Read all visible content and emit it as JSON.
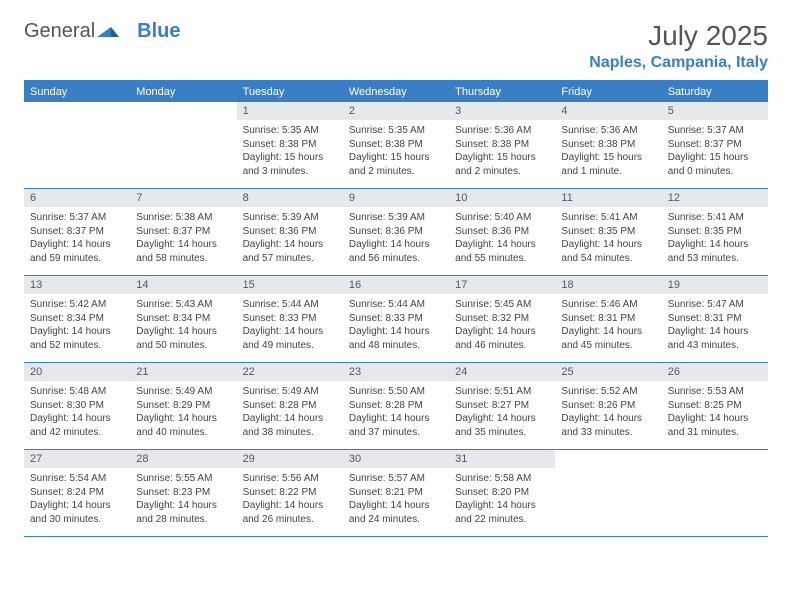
{
  "logo": {
    "text_gray": "General",
    "text_blue": "Blue"
  },
  "title": "July 2025",
  "location": "Naples, Campania, Italy",
  "colors": {
    "brand_blue": "#3a7fc4",
    "daynum_bg": "#e6e9ec",
    "text": "#444444",
    "border": "#3a7fc4"
  },
  "weekdays": [
    "Sunday",
    "Monday",
    "Tuesday",
    "Wednesday",
    "Thursday",
    "Friday",
    "Saturday"
  ],
  "weeks": [
    [
      {
        "empty": true
      },
      {
        "empty": true
      },
      {
        "num": "1",
        "sunrise": "Sunrise: 5:35 AM",
        "sunset": "Sunset: 8:38 PM",
        "day1": "Daylight: 15 hours",
        "day2": "and 3 minutes."
      },
      {
        "num": "2",
        "sunrise": "Sunrise: 5:35 AM",
        "sunset": "Sunset: 8:38 PM",
        "day1": "Daylight: 15 hours",
        "day2": "and 2 minutes."
      },
      {
        "num": "3",
        "sunrise": "Sunrise: 5:36 AM",
        "sunset": "Sunset: 8:38 PM",
        "day1": "Daylight: 15 hours",
        "day2": "and 2 minutes."
      },
      {
        "num": "4",
        "sunrise": "Sunrise: 5:36 AM",
        "sunset": "Sunset: 8:38 PM",
        "day1": "Daylight: 15 hours",
        "day2": "and 1 minute."
      },
      {
        "num": "5",
        "sunrise": "Sunrise: 5:37 AM",
        "sunset": "Sunset: 8:37 PM",
        "day1": "Daylight: 15 hours",
        "day2": "and 0 minutes."
      }
    ],
    [
      {
        "num": "6",
        "sunrise": "Sunrise: 5:37 AM",
        "sunset": "Sunset: 8:37 PM",
        "day1": "Daylight: 14 hours",
        "day2": "and 59 minutes."
      },
      {
        "num": "7",
        "sunrise": "Sunrise: 5:38 AM",
        "sunset": "Sunset: 8:37 PM",
        "day1": "Daylight: 14 hours",
        "day2": "and 58 minutes."
      },
      {
        "num": "8",
        "sunrise": "Sunrise: 5:39 AM",
        "sunset": "Sunset: 8:36 PM",
        "day1": "Daylight: 14 hours",
        "day2": "and 57 minutes."
      },
      {
        "num": "9",
        "sunrise": "Sunrise: 5:39 AM",
        "sunset": "Sunset: 8:36 PM",
        "day1": "Daylight: 14 hours",
        "day2": "and 56 minutes."
      },
      {
        "num": "10",
        "sunrise": "Sunrise: 5:40 AM",
        "sunset": "Sunset: 8:36 PM",
        "day1": "Daylight: 14 hours",
        "day2": "and 55 minutes."
      },
      {
        "num": "11",
        "sunrise": "Sunrise: 5:41 AM",
        "sunset": "Sunset: 8:35 PM",
        "day1": "Daylight: 14 hours",
        "day2": "and 54 minutes."
      },
      {
        "num": "12",
        "sunrise": "Sunrise: 5:41 AM",
        "sunset": "Sunset: 8:35 PM",
        "day1": "Daylight: 14 hours",
        "day2": "and 53 minutes."
      }
    ],
    [
      {
        "num": "13",
        "sunrise": "Sunrise: 5:42 AM",
        "sunset": "Sunset: 8:34 PM",
        "day1": "Daylight: 14 hours",
        "day2": "and 52 minutes."
      },
      {
        "num": "14",
        "sunrise": "Sunrise: 5:43 AM",
        "sunset": "Sunset: 8:34 PM",
        "day1": "Daylight: 14 hours",
        "day2": "and 50 minutes."
      },
      {
        "num": "15",
        "sunrise": "Sunrise: 5:44 AM",
        "sunset": "Sunset: 8:33 PM",
        "day1": "Daylight: 14 hours",
        "day2": "and 49 minutes."
      },
      {
        "num": "16",
        "sunrise": "Sunrise: 5:44 AM",
        "sunset": "Sunset: 8:33 PM",
        "day1": "Daylight: 14 hours",
        "day2": "and 48 minutes."
      },
      {
        "num": "17",
        "sunrise": "Sunrise: 5:45 AM",
        "sunset": "Sunset: 8:32 PM",
        "day1": "Daylight: 14 hours",
        "day2": "and 46 minutes."
      },
      {
        "num": "18",
        "sunrise": "Sunrise: 5:46 AM",
        "sunset": "Sunset: 8:31 PM",
        "day1": "Daylight: 14 hours",
        "day2": "and 45 minutes."
      },
      {
        "num": "19",
        "sunrise": "Sunrise: 5:47 AM",
        "sunset": "Sunset: 8:31 PM",
        "day1": "Daylight: 14 hours",
        "day2": "and 43 minutes."
      }
    ],
    [
      {
        "num": "20",
        "sunrise": "Sunrise: 5:48 AM",
        "sunset": "Sunset: 8:30 PM",
        "day1": "Daylight: 14 hours",
        "day2": "and 42 minutes."
      },
      {
        "num": "21",
        "sunrise": "Sunrise: 5:49 AM",
        "sunset": "Sunset: 8:29 PM",
        "day1": "Daylight: 14 hours",
        "day2": "and 40 minutes."
      },
      {
        "num": "22",
        "sunrise": "Sunrise: 5:49 AM",
        "sunset": "Sunset: 8:28 PM",
        "day1": "Daylight: 14 hours",
        "day2": "and 38 minutes."
      },
      {
        "num": "23",
        "sunrise": "Sunrise: 5:50 AM",
        "sunset": "Sunset: 8:28 PM",
        "day1": "Daylight: 14 hours",
        "day2": "and 37 minutes."
      },
      {
        "num": "24",
        "sunrise": "Sunrise: 5:51 AM",
        "sunset": "Sunset: 8:27 PM",
        "day1": "Daylight: 14 hours",
        "day2": "and 35 minutes."
      },
      {
        "num": "25",
        "sunrise": "Sunrise: 5:52 AM",
        "sunset": "Sunset: 8:26 PM",
        "day1": "Daylight: 14 hours",
        "day2": "and 33 minutes."
      },
      {
        "num": "26",
        "sunrise": "Sunrise: 5:53 AM",
        "sunset": "Sunset: 8:25 PM",
        "day1": "Daylight: 14 hours",
        "day2": "and 31 minutes."
      }
    ],
    [
      {
        "num": "27",
        "sunrise": "Sunrise: 5:54 AM",
        "sunset": "Sunset: 8:24 PM",
        "day1": "Daylight: 14 hours",
        "day2": "and 30 minutes."
      },
      {
        "num": "28",
        "sunrise": "Sunrise: 5:55 AM",
        "sunset": "Sunset: 8:23 PM",
        "day1": "Daylight: 14 hours",
        "day2": "and 28 minutes."
      },
      {
        "num": "29",
        "sunrise": "Sunrise: 5:56 AM",
        "sunset": "Sunset: 8:22 PM",
        "day1": "Daylight: 14 hours",
        "day2": "and 26 minutes."
      },
      {
        "num": "30",
        "sunrise": "Sunrise: 5:57 AM",
        "sunset": "Sunset: 8:21 PM",
        "day1": "Daylight: 14 hours",
        "day2": "and 24 minutes."
      },
      {
        "num": "31",
        "sunrise": "Sunrise: 5:58 AM",
        "sunset": "Sunset: 8:20 PM",
        "day1": "Daylight: 14 hours",
        "day2": "and 22 minutes."
      },
      {
        "empty": true
      },
      {
        "empty": true
      }
    ]
  ]
}
